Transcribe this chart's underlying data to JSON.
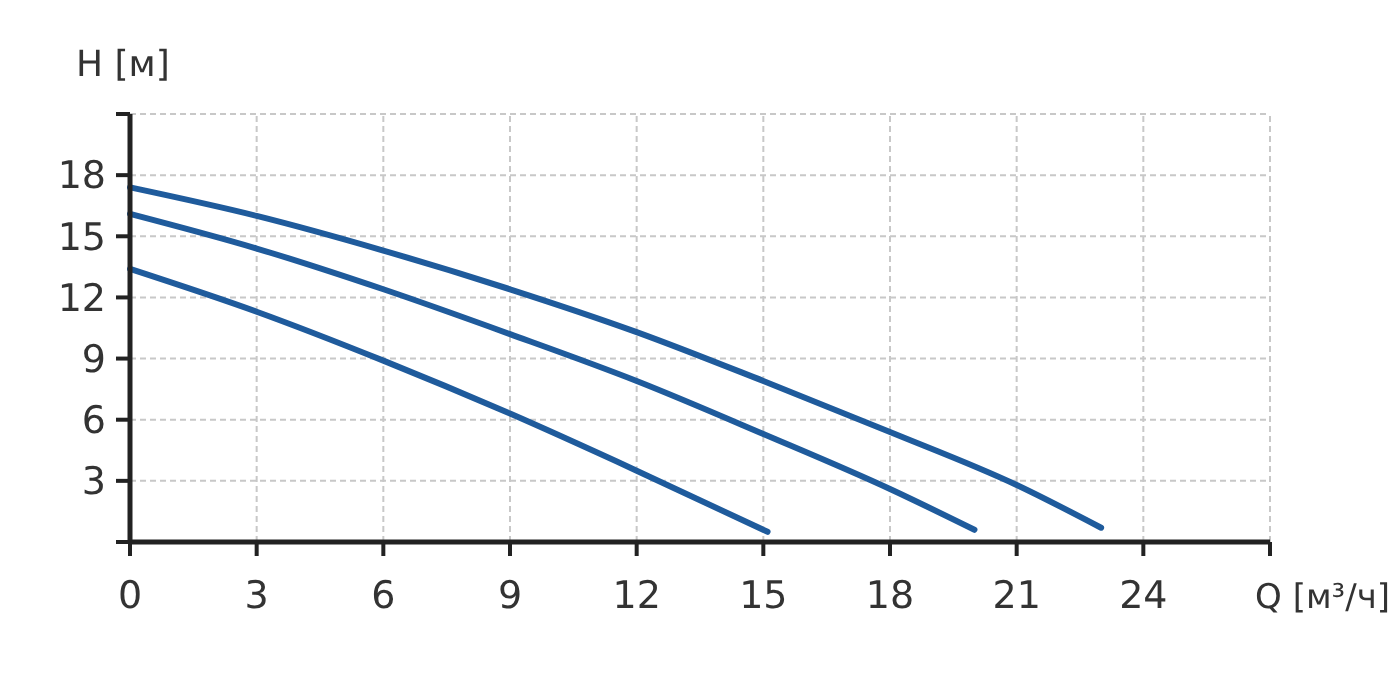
{
  "chart_data": {
    "type": "line",
    "xlabel": "Q [м³/ч]",
    "ylabel": "H [м]",
    "xlim": [
      0,
      27
    ],
    "ylim": [
      0,
      21
    ],
    "xticks": [
      0,
      3,
      6,
      9,
      12,
      15,
      18,
      21,
      24,
      {
        "value": 27,
        "label": null
      }
    ],
    "yticks": [
      {
        "value": 0,
        "label": null
      },
      3,
      6,
      9,
      12,
      15,
      18,
      {
        "value": 21,
        "label": null
      }
    ],
    "grid": true,
    "line_style": "solid",
    "marker": "none",
    "series": [
      {
        "color": "#1f5b9c",
        "x": [
          0,
          3,
          6,
          9,
          12,
          15,
          18,
          21,
          23
        ],
        "values": [
          17.4,
          16.0,
          14.3,
          12.4,
          10.3,
          7.9,
          5.4,
          2.8,
          0.7
        ]
      },
      {
        "color": "#1f5b9c",
        "x": [
          0,
          3,
          6,
          9,
          12,
          15,
          18,
          20
        ],
        "values": [
          16.1,
          14.4,
          12.4,
          10.2,
          7.9,
          5.3,
          2.6,
          0.6
        ]
      },
      {
        "color": "#1f5b9c",
        "x": [
          0,
          3,
          6,
          9,
          12,
          15.1
        ],
        "values": [
          13.4,
          11.3,
          8.9,
          6.3,
          3.5,
          0.5
        ]
      }
    ]
  }
}
